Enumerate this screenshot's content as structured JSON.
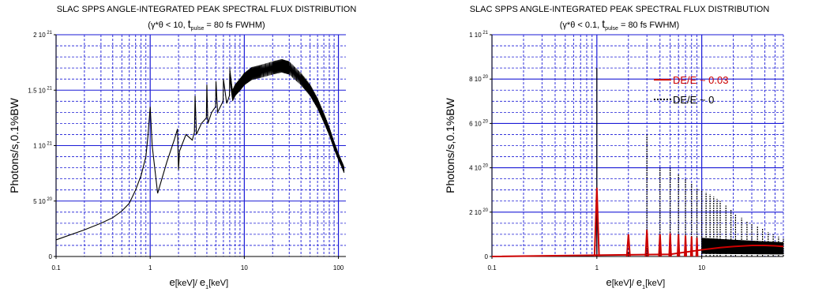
{
  "chart_data": [
    {
      "type": "line",
      "title": "SLAC SPPS ANGLE-INTEGRATED PEAK SPECTRAL FLUX DISTRIBUTION",
      "subtitle": {
        "prefix": "(γ*θ < 10,  ",
        "t": "t",
        "sub": "pulse",
        "suffix": " = 80 fs FWHM)"
      },
      "ylabel": "Photons/s,0.1%BW",
      "xlabel": {
        "a": "e",
        "b": "[keV]/  ",
        "c": "e",
        "c_sub": "1",
        "d": "[keV]"
      },
      "x_scale": "log",
      "xlim": [
        0.1,
        120
      ],
      "ylim": [
        0,
        2e+21
      ],
      "x_ticks": [
        {
          "v": 0.1,
          "label": "0.1"
        },
        {
          "v": 1,
          "label": "1"
        },
        {
          "v": 10,
          "label": "10"
        },
        {
          "v": 100,
          "label": "100"
        }
      ],
      "y_ticks": [
        {
          "v": 0,
          "label": "0"
        },
        {
          "v": 5e+20,
          "label": "5 10",
          "exp": "20"
        },
        {
          "v": 1e+21,
          "label": "1 10",
          "exp": "21"
        },
        {
          "v": 1.5e+21,
          "label": "1.5 10",
          "exp": "21"
        },
        {
          "v": 2e+21,
          "label": "2 10",
          "exp": "21"
        }
      ],
      "series": [
        {
          "color": "#000000",
          "x": [
            0.1,
            0.2,
            0.3,
            0.4,
            0.5,
            0.6,
            0.7,
            0.8,
            0.9,
            0.95,
            1.0,
            1.05,
            1.2,
            1.5,
            1.8,
            1.95,
            2.0,
            2.05,
            2.4,
            2.8,
            2.95,
            3.0,
            3.1,
            3.5,
            3.95,
            4.0,
            4.1,
            4.5,
            4.95,
            5.0,
            5.2,
            5.95,
            6.0,
            6.5,
            6.95,
            7.0,
            7.5,
            8.0,
            9.0,
            10.0,
            12.0,
            15.0,
            20.0,
            25.0,
            30.0,
            40.0,
            50.0,
            60.0,
            70.0,
            80.0,
            90.0,
            100.0,
            110.0,
            115.0
          ],
          "y": [
            1.5e+20,
            2.4e+20,
            3e+20,
            3.5e+20,
            4.1e+20,
            4.8e+20,
            6e+20,
            7.3e+20,
            9e+20,
            1.1e+21,
            1.35e+21,
            1e+21,
            5.7e+20,
            8.5e+20,
            1.05e+21,
            1.15e+21,
            7.8e+20,
            9.5e+20,
            1.1e+21,
            1.05e+21,
            1.12e+21,
            1.45e+21,
            1.1e+21,
            1.2e+21,
            1.25e+21,
            1.55e+21,
            1.2e+21,
            1.3e+21,
            1.35e+21,
            1.58e+21,
            1.3e+21,
            1.4e+21,
            1.6e+21,
            1.38e+21,
            1.45e+21,
            1.65e+21,
            1.45e+21,
            1.5e+21,
            1.55e+21,
            1.6e+21,
            1.65e+21,
            1.67e+21,
            1.7e+21,
            1.72e+21,
            1.7e+21,
            1.6e+21,
            1.5e+21,
            1.38e+21,
            1.25e+21,
            1.13e+21,
            1e+21,
            9e+20,
            8.2e+20,
            7.8e+20
          ]
        }
      ]
    },
    {
      "type": "line",
      "title": "SLAC SPPS ANGLE-INTEGRATED PEAK SPECTRAL FLUX DISTRIBUTION",
      "subtitle": {
        "prefix": "(γ*θ < 0.1,  ",
        "t": "t",
        "sub": "pulse",
        "suffix": " = 80 fs FWHM)"
      },
      "ylabel": "Photons/s,0.1%BW",
      "xlabel": {
        "a": "e",
        "b": "[keV]/  ",
        "c": "e",
        "c_sub": "1",
        "d": "[keV]"
      },
      "x_scale": "log",
      "xlim": [
        0.1,
        60
      ],
      "ylim": [
        0,
        1e+21
      ],
      "x_ticks": [
        {
          "v": 0.1,
          "label": "0.1"
        },
        {
          "v": 1,
          "label": "1"
        },
        {
          "v": 10,
          "label": "10"
        }
      ],
      "y_ticks": [
        {
          "v": 0,
          "label": "0"
        },
        {
          "v": 2e+20,
          "label": "2 10",
          "exp": "20"
        },
        {
          "v": 4e+20,
          "label": "4 10",
          "exp": "20"
        },
        {
          "v": 6e+20,
          "label": "6 10",
          "exp": "20"
        },
        {
          "v": 8e+20,
          "label": "8 10",
          "exp": "20"
        },
        {
          "v": 1e+21,
          "label": "1 10",
          "exp": "21"
        }
      ],
      "legend": [
        {
          "label": "DE/E ~ 0.03",
          "color": "#cc0000"
        },
        {
          "label": "DE/E ~ 0",
          "color": "#000000"
        }
      ],
      "series": [
        {
          "name": "DE/E ~ 0.03",
          "color": "#cc0000",
          "peaks": [
            {
              "x": 1,
              "y": 3.1e+20,
              "w": 0.05
            },
            {
              "x": 2,
              "y": 1e+20,
              "w": 0.035
            },
            {
              "x": 3,
              "y": 1.2e+20,
              "w": 0.03
            },
            {
              "x": 4,
              "y": 1e+20,
              "w": 0.025
            },
            {
              "x": 5,
              "y": 1.05e+20,
              "w": 0.022
            },
            {
              "x": 6,
              "y": 1e+20,
              "w": 0.02
            },
            {
              "x": 7,
              "y": 9.5e+19,
              "w": 0.018
            },
            {
              "x": 8,
              "y": 9e+19,
              "w": 0.016
            },
            {
              "x": 9,
              "y": 8.5e+19,
              "w": 0.015
            }
          ],
          "baseline_x": [
            0.1,
            5,
            10,
            15,
            20,
            30,
            40,
            50,
            60
          ],
          "baseline_y": [
            0,
            1e+19,
            3e+19,
            4e+19,
            4.5e+19,
            5e+19,
            5e+19,
            4.8e+19,
            4.5e+19
          ]
        },
        {
          "name": "DE/E ~ 0",
          "color": "#000000",
          "spikes": [
            {
              "x": 1,
              "y": 8.5e+20
            },
            {
              "x": 2,
              "y": 2e+19
            },
            {
              "x": 3,
              "y": 5.5e+20
            },
            {
              "x": 4,
              "y": 4e+20
            },
            {
              "x": 5,
              "y": 4e+20
            },
            {
              "x": 6,
              "y": 3.7e+20
            },
            {
              "x": 7,
              "y": 3.5e+20
            },
            {
              "x": 8,
              "y": 3.3e+20
            },
            {
              "x": 9,
              "y": 3.1e+20
            },
            {
              "x": 10,
              "y": 3e+20
            },
            {
              "x": 11,
              "y": 2.9e+20
            },
            {
              "x": 12,
              "y": 2.8e+20
            },
            {
              "x": 13,
              "y": 2.7e+20
            },
            {
              "x": 14,
              "y": 2.6e+20
            },
            {
              "x": 15,
              "y": 2.5e+20
            },
            {
              "x": 17,
              "y": 2.3e+20
            },
            {
              "x": 19,
              "y": 2.1e+20
            },
            {
              "x": 21,
              "y": 1.9e+20
            },
            {
              "x": 24,
              "y": 1.75e+20
            },
            {
              "x": 27,
              "y": 1.6e+20
            },
            {
              "x": 30,
              "y": 1.5e+20
            },
            {
              "x": 34,
              "y": 1.35e+20
            },
            {
              "x": 38,
              "y": 1.25e+20
            },
            {
              "x": 43,
              "y": 1.1e+20
            },
            {
              "x": 48,
              "y": 1e+20
            },
            {
              "x": 54,
              "y": 9e+19
            },
            {
              "x": 60,
              "y": 8e+19
            }
          ]
        }
      ]
    }
  ]
}
